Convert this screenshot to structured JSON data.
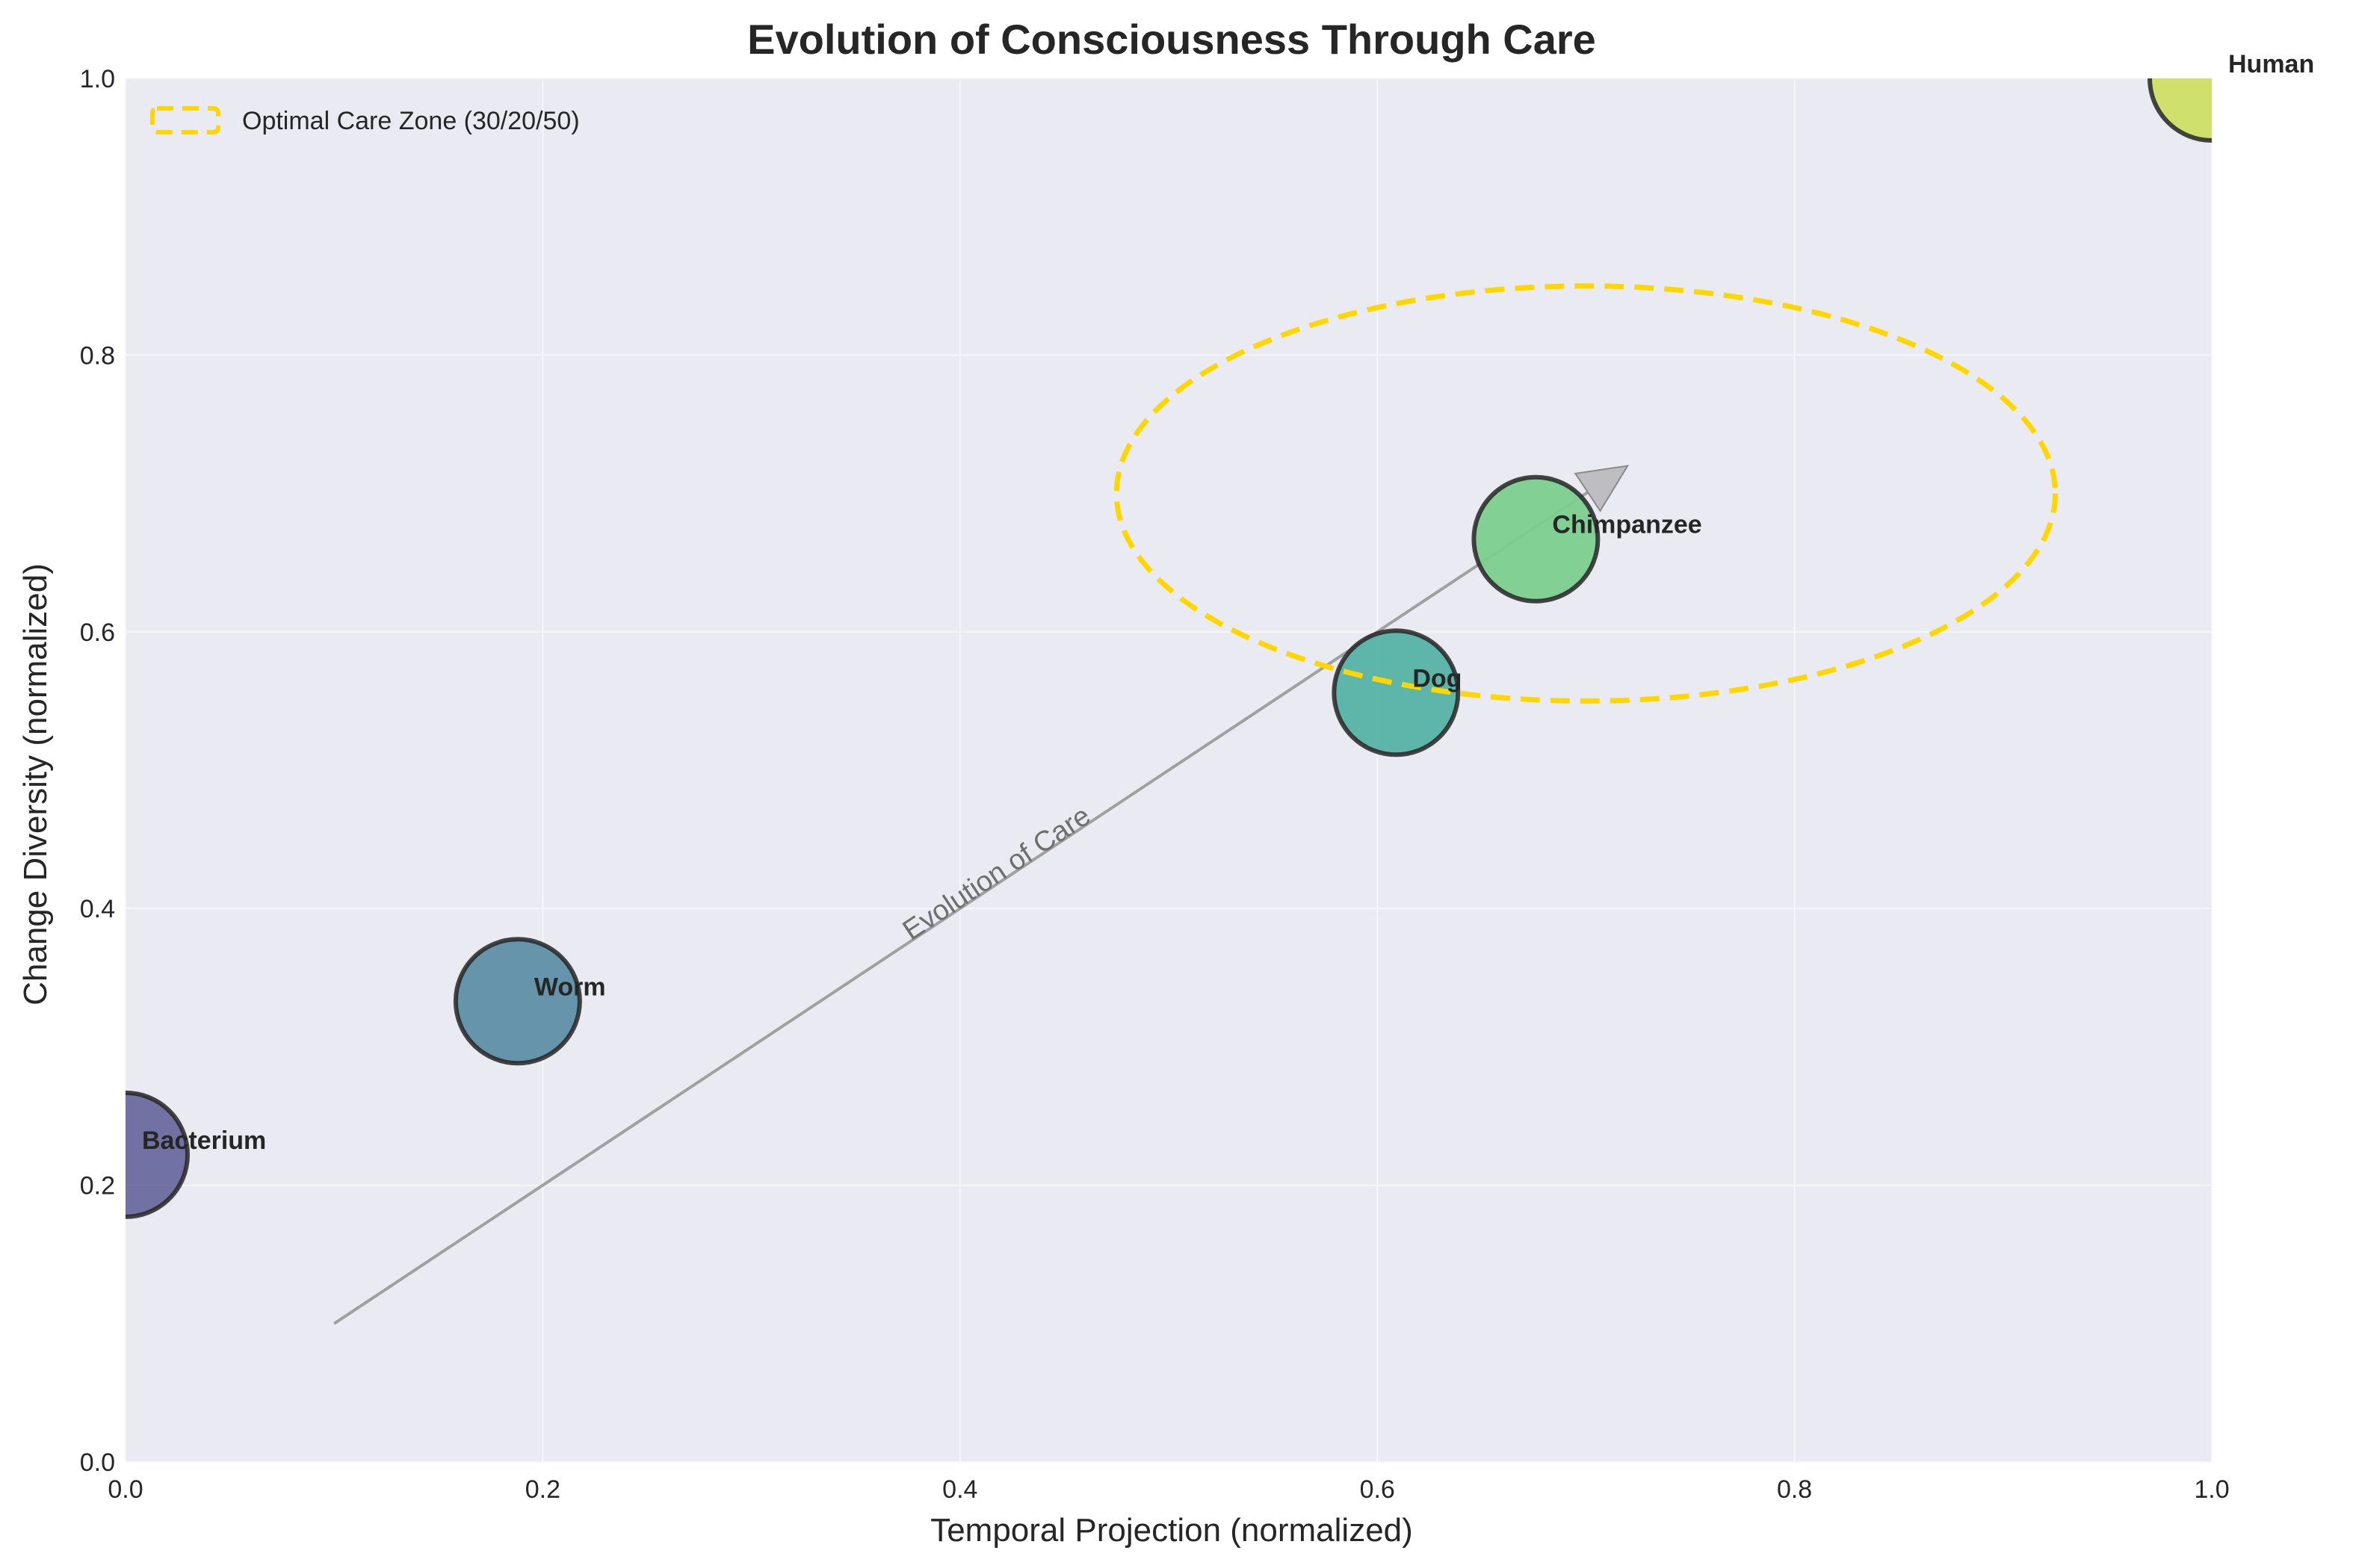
{
  "chart_data": {
    "type": "scatter",
    "title": "Evolution of Consciousness Through Care",
    "xlabel": "Temporal Projection (normalized)",
    "ylabel": "Change Diversity (normalized)",
    "xlim": [
      0,
      1
    ],
    "ylim": [
      0,
      1
    ],
    "xticks": [
      "0.0",
      "0.2",
      "0.4",
      "0.6",
      "0.8",
      "1.0"
    ],
    "yticks": [
      "0.0",
      "0.2",
      "0.4",
      "0.6",
      "0.8",
      "1.0"
    ],
    "grid": true,
    "background": "#eaeaf2",
    "points": [
      {
        "label": "Bacterium",
        "x": 0.0,
        "y": 0.222,
        "color": "#6b6a9e"
      },
      {
        "label": "Worm",
        "x": 0.188,
        "y": 0.333,
        "color": "#5f8fa5"
      },
      {
        "label": "Dog",
        "x": 0.609,
        "y": 0.556,
        "color": "#56b2a5"
      },
      {
        "label": "Chimpanzee",
        "x": 0.676,
        "y": 0.667,
        "color": "#7ccf8e"
      },
      {
        "label": "Human",
        "x": 1.0,
        "y": 1.0,
        "color": "#cde064"
      }
    ],
    "arrow": {
      "label": "Evolution of Care",
      "from": [
        0.1,
        0.1
      ],
      "to": [
        0.72,
        0.72
      ],
      "color": "#a0a0a0"
    },
    "zone": {
      "label": "Optimal Care Zone (30/20/50)",
      "center": [
        0.7,
        0.7
      ],
      "rx": 0.15,
      "ry": 0.15,
      "color": "#ffd700",
      "style": "dashed"
    },
    "legend": {
      "position": "top-left",
      "entries": [
        "Optimal Care Zone (30/20/50)"
      ]
    }
  }
}
